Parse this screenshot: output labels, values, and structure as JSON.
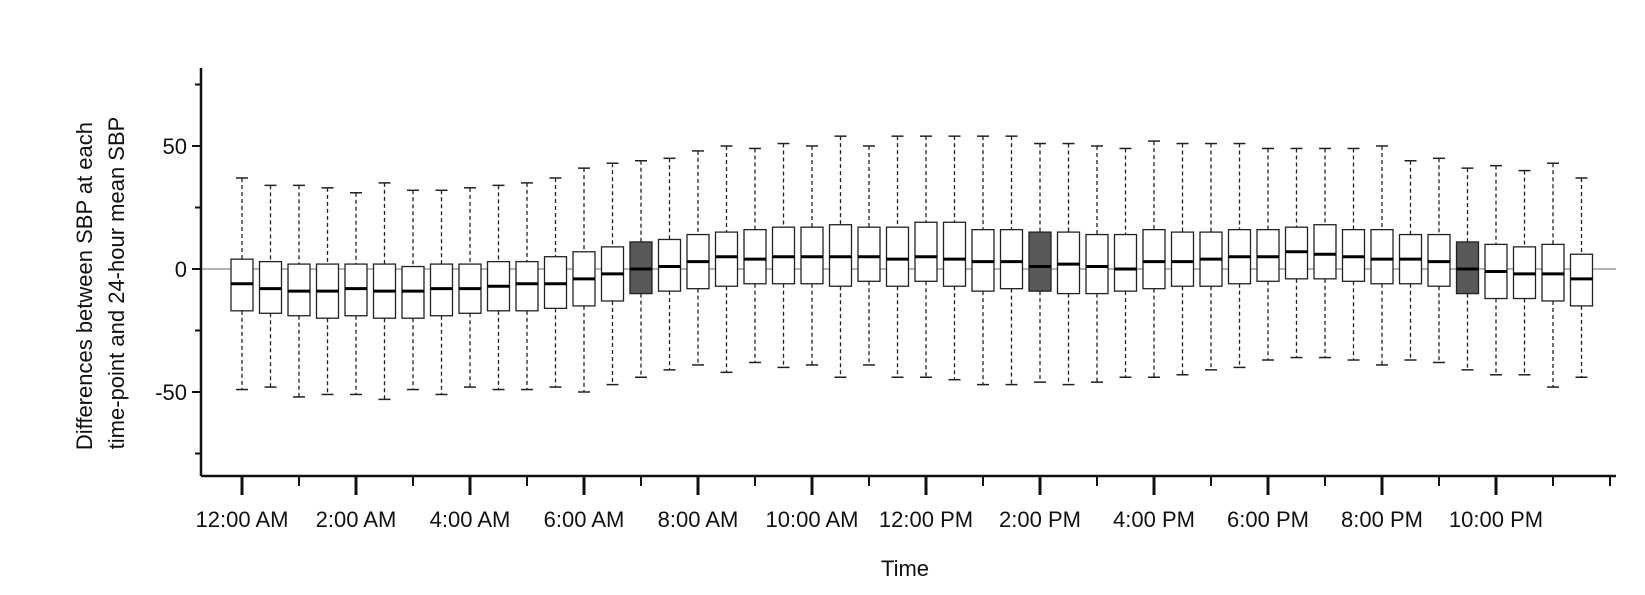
{
  "chart_data": {
    "type": "boxplot",
    "title": "",
    "xlabel": "Time",
    "ylabel_lines": [
      "Differences between SBP at each",
      "time-point and 24-hour mean SBP"
    ],
    "ylim": [
      -84,
      80
    ],
    "y_ticks": [
      50,
      0,
      -50
    ],
    "y_tick_labels": [
      "50",
      "0",
      "-50"
    ],
    "x_tick_labels": [
      "12:00 AM",
      "2:00 AM",
      "4:00 AM",
      "6:00 AM",
      "8:00 AM",
      "10:00 AM",
      "12:00 PM",
      "2:00 PM",
      "4:00 PM",
      "6:00 PM",
      "8:00 PM",
      "10:00 PM"
    ],
    "x_tick_hours": [
      0,
      2,
      4,
      6,
      8,
      10,
      12,
      14,
      16,
      18,
      20,
      22
    ],
    "x_range_hours": [
      -0.7,
      24.3
    ],
    "box_interval_hours": 0.5,
    "reference_line_y": 0,
    "colors": {
      "box_fill": "#ffffff",
      "highlight_fill": "#595959",
      "stroke": "#222222",
      "axis": "#111111",
      "refline": "#888888"
    },
    "boxes": [
      {
        "time": "0:00",
        "whisker_low": -49,
        "q1": -17,
        "median": -6,
        "q3": 4,
        "whisker_high": 37,
        "highlight": false
      },
      {
        "time": "0:30",
        "whisker_low": -48,
        "q1": -18,
        "median": -8,
        "q3": 3,
        "whisker_high": 34,
        "highlight": false
      },
      {
        "time": "1:00",
        "whisker_low": -52,
        "q1": -19,
        "median": -9,
        "q3": 2,
        "whisker_high": 34,
        "highlight": false
      },
      {
        "time": "1:30",
        "whisker_low": -51,
        "q1": -20,
        "median": -9,
        "q3": 2,
        "whisker_high": 33,
        "highlight": false
      },
      {
        "time": "2:00",
        "whisker_low": -51,
        "q1": -19,
        "median": -8,
        "q3": 2,
        "whisker_high": 31,
        "highlight": false
      },
      {
        "time": "2:30",
        "whisker_low": -53,
        "q1": -20,
        "median": -9,
        "q3": 2,
        "whisker_high": 35,
        "highlight": false
      },
      {
        "time": "3:00",
        "whisker_low": -49,
        "q1": -20,
        "median": -9,
        "q3": 1,
        "whisker_high": 32,
        "highlight": false
      },
      {
        "time": "3:30",
        "whisker_low": -51,
        "q1": -19,
        "median": -8,
        "q3": 2,
        "whisker_high": 32,
        "highlight": false
      },
      {
        "time": "4:00",
        "whisker_low": -48,
        "q1": -18,
        "median": -8,
        "q3": 2,
        "whisker_high": 33,
        "highlight": false
      },
      {
        "time": "4:30",
        "whisker_low": -49,
        "q1": -17,
        "median": -7,
        "q3": 3,
        "whisker_high": 34,
        "highlight": false
      },
      {
        "time": "5:00",
        "whisker_low": -49,
        "q1": -17,
        "median": -6,
        "q3": 3,
        "whisker_high": 35,
        "highlight": false
      },
      {
        "time": "5:30",
        "whisker_low": -48,
        "q1": -16,
        "median": -6,
        "q3": 5,
        "whisker_high": 37,
        "highlight": false
      },
      {
        "time": "6:00",
        "whisker_low": -50,
        "q1": -15,
        "median": -4,
        "q3": 7,
        "whisker_high": 41,
        "highlight": false
      },
      {
        "time": "6:30",
        "whisker_low": -47,
        "q1": -13,
        "median": -2,
        "q3": 9,
        "whisker_high": 43,
        "highlight": false
      },
      {
        "time": "7:00",
        "whisker_low": -44,
        "q1": -10,
        "median": 0,
        "q3": 11,
        "whisker_high": 44,
        "highlight": true
      },
      {
        "time": "7:30",
        "whisker_low": -41,
        "q1": -9,
        "median": 1,
        "q3": 12,
        "whisker_high": 45,
        "highlight": false
      },
      {
        "time": "8:00",
        "whisker_low": -39,
        "q1": -8,
        "median": 3,
        "q3": 14,
        "whisker_high": 48,
        "highlight": false
      },
      {
        "time": "8:30",
        "whisker_low": -42,
        "q1": -7,
        "median": 5,
        "q3": 15,
        "whisker_high": 50,
        "highlight": false
      },
      {
        "time": "9:00",
        "whisker_low": -38,
        "q1": -6,
        "median": 4,
        "q3": 16,
        "whisker_high": 49,
        "highlight": false
      },
      {
        "time": "9:30",
        "whisker_low": -40,
        "q1": -6,
        "median": 5,
        "q3": 17,
        "whisker_high": 51,
        "highlight": false
      },
      {
        "time": "10:00",
        "whisker_low": -39,
        "q1": -6,
        "median": 5,
        "q3": 17,
        "whisker_high": 50,
        "highlight": false
      },
      {
        "time": "10:30",
        "whisker_low": -44,
        "q1": -7,
        "median": 5,
        "q3": 18,
        "whisker_high": 54,
        "highlight": false
      },
      {
        "time": "11:00",
        "whisker_low": -39,
        "q1": -5,
        "median": 5,
        "q3": 17,
        "whisker_high": 50,
        "highlight": false
      },
      {
        "time": "11:30",
        "whisker_low": -44,
        "q1": -7,
        "median": 4,
        "q3": 17,
        "whisker_high": 54,
        "highlight": false
      },
      {
        "time": "12:00",
        "whisker_low": -44,
        "q1": -5,
        "median": 5,
        "q3": 19,
        "whisker_high": 54,
        "highlight": false
      },
      {
        "time": "12:30",
        "whisker_low": -45,
        "q1": -7,
        "median": 4,
        "q3": 19,
        "whisker_high": 54,
        "highlight": false
      },
      {
        "time": "13:00",
        "whisker_low": -47,
        "q1": -9,
        "median": 3,
        "q3": 16,
        "whisker_high": 54,
        "highlight": false
      },
      {
        "time": "13:30",
        "whisker_low": -47,
        "q1": -8,
        "median": 3,
        "q3": 16,
        "whisker_high": 54,
        "highlight": false
      },
      {
        "time": "14:00",
        "whisker_low": -46,
        "q1": -9,
        "median": 1,
        "q3": 15,
        "whisker_high": 51,
        "highlight": true
      },
      {
        "time": "14:30",
        "whisker_low": -47,
        "q1": -10,
        "median": 2,
        "q3": 15,
        "whisker_high": 51,
        "highlight": false
      },
      {
        "time": "15:00",
        "whisker_low": -46,
        "q1": -10,
        "median": 1,
        "q3": 14,
        "whisker_high": 50,
        "highlight": false
      },
      {
        "time": "15:30",
        "whisker_low": -44,
        "q1": -9,
        "median": 0,
        "q3": 14,
        "whisker_high": 49,
        "highlight": false
      },
      {
        "time": "16:00",
        "whisker_low": -44,
        "q1": -8,
        "median": 3,
        "q3": 16,
        "whisker_high": 52,
        "highlight": false
      },
      {
        "time": "16:30",
        "whisker_low": -43,
        "q1": -7,
        "median": 3,
        "q3": 15,
        "whisker_high": 51,
        "highlight": false
      },
      {
        "time": "17:00",
        "whisker_low": -41,
        "q1": -7,
        "median": 4,
        "q3": 15,
        "whisker_high": 51,
        "highlight": false
      },
      {
        "time": "17:30",
        "whisker_low": -40,
        "q1": -6,
        "median": 5,
        "q3": 16,
        "whisker_high": 51,
        "highlight": false
      },
      {
        "time": "18:00",
        "whisker_low": -37,
        "q1": -5,
        "median": 5,
        "q3": 16,
        "whisker_high": 49,
        "highlight": false
      },
      {
        "time": "18:30",
        "whisker_low": -36,
        "q1": -4,
        "median": 7,
        "q3": 17,
        "whisker_high": 49,
        "highlight": false
      },
      {
        "time": "19:00",
        "whisker_low": -36,
        "q1": -4,
        "median": 6,
        "q3": 18,
        "whisker_high": 49,
        "highlight": false
      },
      {
        "time": "19:30",
        "whisker_low": -37,
        "q1": -5,
        "median": 5,
        "q3": 16,
        "whisker_high": 49,
        "highlight": false
      },
      {
        "time": "20:00",
        "whisker_low": -39,
        "q1": -6,
        "median": 4,
        "q3": 16,
        "whisker_high": 50,
        "highlight": false
      },
      {
        "time": "20:30",
        "whisker_low": -37,
        "q1": -6,
        "median": 4,
        "q3": 14,
        "whisker_high": 44,
        "highlight": false
      },
      {
        "time": "21:00",
        "whisker_low": -38,
        "q1": -7,
        "median": 3,
        "q3": 14,
        "whisker_high": 45,
        "highlight": false
      },
      {
        "time": "21:30",
        "whisker_low": -41,
        "q1": -10,
        "median": 0,
        "q3": 11,
        "whisker_high": 41,
        "highlight": true
      },
      {
        "time": "22:00",
        "whisker_low": -43,
        "q1": -12,
        "median": -1,
        "q3": 10,
        "whisker_high": 42,
        "highlight": false
      },
      {
        "time": "22:30",
        "whisker_low": -43,
        "q1": -12,
        "median": -2,
        "q3": 9,
        "whisker_high": 40,
        "highlight": false
      },
      {
        "time": "23:00",
        "whisker_low": -48,
        "q1": -13,
        "median": -2,
        "q3": 10,
        "whisker_high": 43,
        "highlight": false
      },
      {
        "time": "23:30",
        "whisker_low": -44,
        "q1": -15,
        "median": -4,
        "q3": 6,
        "whisker_high": 37,
        "highlight": false
      }
    ]
  }
}
